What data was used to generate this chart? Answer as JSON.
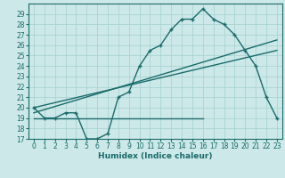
{
  "title": "",
  "xlabel": "Humidex (Indice chaleur)",
  "ylabel": "",
  "bg_color": "#cce8e8",
  "line_color": "#1a6b6b",
  "grid_color": "#aad4d4",
  "xlim": [
    -0.5,
    23.5
  ],
  "ylim": [
    17,
    30
  ],
  "yticks": [
    17,
    18,
    19,
    20,
    21,
    22,
    23,
    24,
    25,
    26,
    27,
    28,
    29
  ],
  "xticks": [
    0,
    1,
    2,
    3,
    4,
    5,
    6,
    7,
    8,
    9,
    10,
    11,
    12,
    13,
    14,
    15,
    16,
    17,
    18,
    19,
    20,
    21,
    22,
    23
  ],
  "main_x": [
    0,
    1,
    2,
    3,
    4,
    5,
    6,
    7,
    8,
    9,
    10,
    11,
    12,
    13,
    14,
    15,
    16,
    17,
    18,
    19,
    20,
    21,
    22,
    23
  ],
  "main_y": [
    20,
    19,
    19,
    19.5,
    19.5,
    17,
    17,
    17.5,
    21,
    21.5,
    24,
    25.5,
    26,
    27.5,
    28.5,
    28.5,
    29.5,
    28.5,
    28,
    27,
    25.5,
    24,
    21,
    19
  ],
  "trend1_x": [
    0,
    23
  ],
  "trend1_y": [
    19.5,
    26.5
  ],
  "trend2_x": [
    0,
    23
  ],
  "trend2_y": [
    20.0,
    25.5
  ],
  "hline_x": [
    0,
    16
  ],
  "hline_y": [
    19.0,
    19.0
  ],
  "xlabel_fontsize": 6.5,
  "tick_fontsize": 5.5
}
